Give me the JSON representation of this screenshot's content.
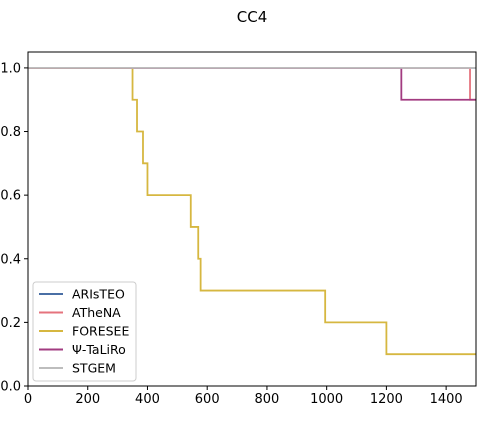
{
  "chart_data": {
    "type": "line",
    "title": "CC4",
    "xlabel": "",
    "ylabel": "",
    "xlim": [
      0,
      1500
    ],
    "ylim": [
      0,
      1.05
    ],
    "xticks": [
      0,
      200,
      400,
      600,
      800,
      1000,
      1200,
      1400
    ],
    "yticks": [
      0.0,
      0.2,
      0.4,
      0.6,
      0.8,
      1.0
    ],
    "xtick_labels": [
      "0",
      "200",
      "400",
      "600",
      "800",
      "1000",
      "1200",
      "1400"
    ],
    "ytick_labels": [
      "0.0",
      "0.2",
      "0.4",
      "0.6",
      "0.8",
      "1.0"
    ],
    "grid": false,
    "legend_position": "lower-left",
    "step": "post",
    "series": [
      {
        "name": "ARIsTEO",
        "color": "#4a6fa5",
        "x": [
          0,
          1500
        ],
        "y": [
          1.0,
          1.0
        ]
      },
      {
        "name": "ATheNA",
        "color": "#e5737d",
        "x": [
          0,
          1480,
          1500
        ],
        "y": [
          1.0,
          0.9,
          0.9
        ]
      },
      {
        "name": "FORESEE",
        "color": "#d6b740",
        "x": [
          0,
          350,
          365,
          385,
          400,
          545,
          570,
          578,
          995,
          1200,
          1500
        ],
        "y": [
          1.0,
          0.9,
          0.8,
          0.7,
          0.6,
          0.5,
          0.4,
          0.3,
          0.2,
          0.1,
          0.1
        ]
      },
      {
        "name": "Ψ-TaLiRo",
        "color": "#a23b80",
        "x": [
          0,
          1250,
          1500
        ],
        "y": [
          1.0,
          0.9,
          0.9
        ]
      },
      {
        "name": "STGEM",
        "color": "#bdbdbd",
        "x": [
          0,
          1500
        ],
        "y": [
          1.0,
          1.0
        ]
      }
    ]
  }
}
